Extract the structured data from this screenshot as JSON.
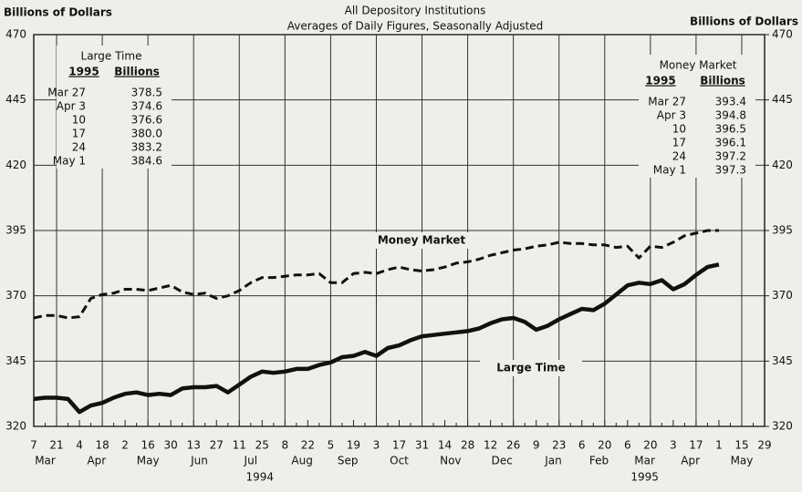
{
  "chart_data": {
    "type": "line",
    "subtitle": "All Depository Institutions",
    "subtitle2": "Averages of Daily Figures, Seasonally Adjusted",
    "ylabel": "Billions of Dollars",
    "y2label": "Billions of Dollars",
    "categories": [
      "7",
      null,
      "21",
      null,
      "4",
      null,
      "18",
      null,
      "2",
      null,
      "16",
      null,
      "30",
      null,
      "13",
      null,
      "27",
      null,
      "11",
      null,
      "25",
      null,
      "8",
      null,
      "22",
      null,
      "5",
      null,
      "19",
      null,
      "3",
      null,
      "17",
      null,
      "31",
      null,
      "14",
      null,
      "28",
      null,
      "12",
      null,
      "26",
      null,
      "9",
      null,
      "23",
      null,
      "6",
      null,
      "20",
      null,
      "6",
      null,
      "20",
      null,
      "3",
      null,
      "17",
      null,
      "1",
      null,
      "15",
      null,
      "29"
    ],
    "months": [
      "Mar",
      "Apr",
      "May",
      "Jun",
      "Jul",
      "Aug",
      "Sep",
      "Oct",
      "Nov",
      "Dec",
      "Jan",
      "Feb",
      "Mar",
      "Apr",
      "May"
    ],
    "years": [
      "1994",
      "1995"
    ],
    "ylim": [
      320,
      470
    ],
    "yticks": [
      320,
      345,
      370,
      395,
      420,
      445,
      470
    ],
    "y2lim": [
      320,
      470
    ],
    "y2ticks": [
      320,
      345,
      370,
      395,
      420,
      445,
      470
    ],
    "grid": true,
    "series": [
      {
        "name": "Money Market",
        "color": "#111111",
        "dash": true,
        "values": [
          361.5,
          362.5,
          362.5,
          361.5,
          362,
          369,
          370.5,
          371,
          372.5,
          372.5,
          372,
          373,
          374,
          371.5,
          370.5,
          371,
          369,
          370,
          372,
          375,
          377,
          377,
          377.5,
          378,
          378,
          378.5,
          375,
          375,
          378.5,
          379,
          378.5,
          380,
          381,
          380,
          379.5,
          380,
          381,
          382.5,
          383,
          384,
          385.5,
          386.5,
          387.5,
          388,
          389,
          389.5,
          390.5,
          390,
          390,
          389.5,
          389.5,
          388.5,
          389,
          384.5,
          389,
          388.5,
          390.5,
          393,
          394,
          395,
          395,
          null,
          null,
          null,
          null
        ]
      },
      {
        "name": "Large Time",
        "color": "#111111",
        "dash": false,
        "values": [
          330.5,
          331,
          331,
          330.5,
          325.5,
          328,
          329,
          331,
          332.5,
          333,
          332,
          332.5,
          332,
          334.5,
          335,
          335,
          335.5,
          333,
          336,
          339,
          341,
          340.5,
          341,
          342,
          342,
          343.5,
          344.5,
          346.5,
          347,
          348.5,
          347,
          350,
          351,
          353,
          354.5,
          355,
          355.5,
          356,
          356.5,
          357.5,
          359.5,
          361,
          361.5,
          360,
          357,
          358.5,
          361,
          363,
          365,
          364.5,
          367,
          370.5,
          374,
          375,
          374.5,
          376,
          372.5,
          374.5,
          378,
          381,
          382,
          null,
          null,
          null,
          null
        ]
      }
    ],
    "tables": [
      {
        "title": "Large Time",
        "headers": [
          "1995",
          "Billions"
        ],
        "rows": [
          [
            "Mar 27",
            "378.5"
          ],
          [
            "Apr 3",
            "374.6"
          ],
          [
            "10",
            "376.6"
          ],
          [
            "17",
            "380.0"
          ],
          [
            "24",
            "383.2"
          ],
          [
            "May 1",
            "384.6"
          ]
        ]
      },
      {
        "title": "Money Market",
        "headers": [
          "1995",
          "Billions"
        ],
        "rows": [
          [
            "Mar 27",
            "393.4"
          ],
          [
            "Apr 3",
            "394.8"
          ],
          [
            "10",
            "396.5"
          ],
          [
            "17",
            "396.1"
          ],
          [
            "24",
            "397.2"
          ],
          [
            "May 1",
            "397.3"
          ]
        ]
      }
    ]
  }
}
